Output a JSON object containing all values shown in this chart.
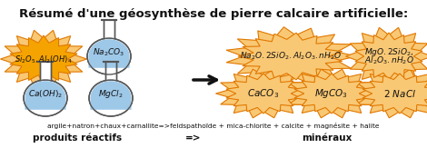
{
  "title": "Résumé d'une géosynthèse de pierre calcaire artificielle:",
  "title_fontsize": 9.5,
  "bg_color": "#ffffff",
  "blob_fill_bright": "#f5a300",
  "blob_fill_light": "#f9c875",
  "blob_edge": "#e07800",
  "flask_liquid": "#9ec8e8",
  "flask_edge": "#555555",
  "flask_body": "#ffffff",
  "text_dark": "#111111",
  "bottom_line1": "argile+natron+chaux+carnallite=>feldspathoïde + mica-chlorite + calcite + magnésite + halite",
  "bottom_line2_left": "produits réactifs",
  "bottom_line2_mid": "=>",
  "bottom_line2_right": "minéraux",
  "arrow_color": "#111111"
}
